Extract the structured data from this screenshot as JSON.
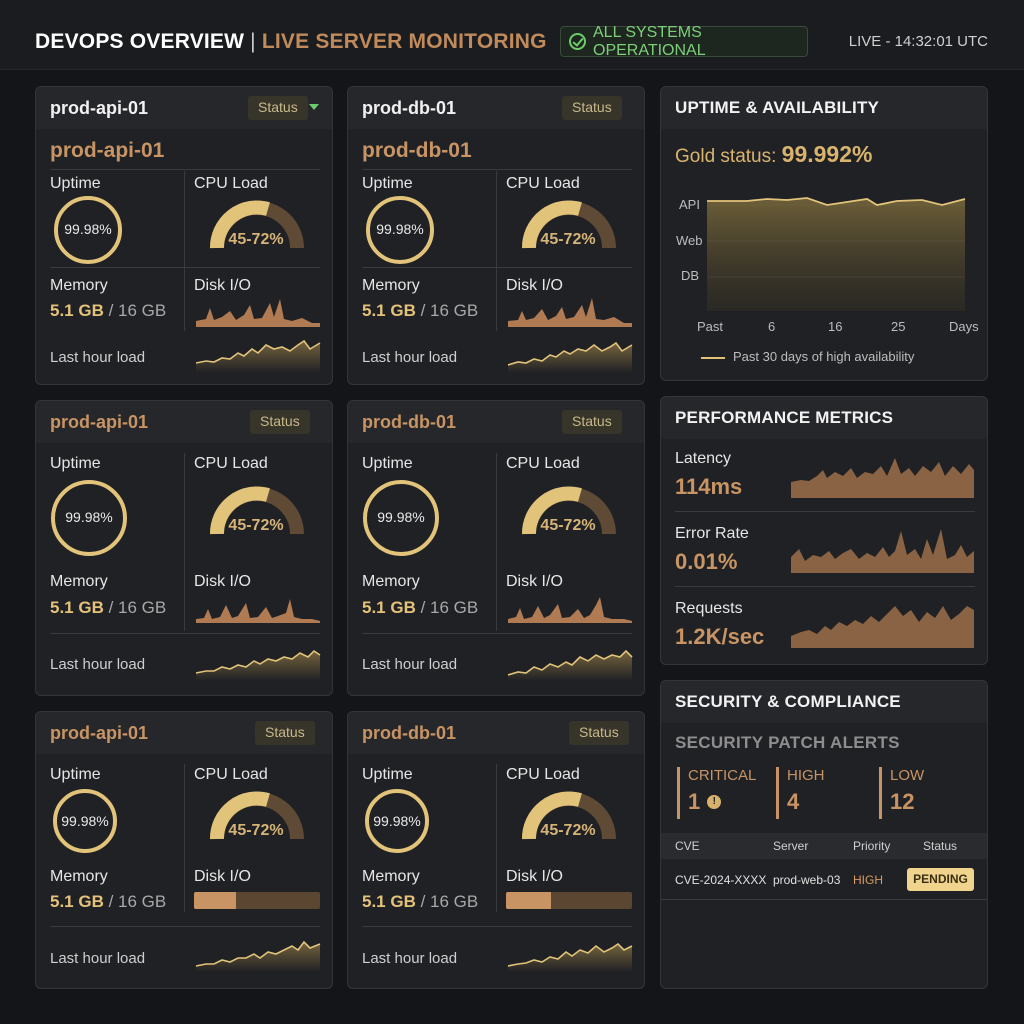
{
  "header": {
    "title": "DEVOPS OVERVIEW",
    "separator": "|",
    "subtitle": "LIVE SERVER MONITORING",
    "status": "ALL SYSTEMS OPERATIONAL",
    "live": "LIVE - 14:32:01 UTC"
  },
  "labels": {
    "status": "Status",
    "uptime": "Uptime",
    "cpu_load": "CPU Load",
    "memory": "Memory",
    "disk_io": "Disk I/O",
    "last_hour_load": "Last hour load"
  },
  "servers": [
    {
      "name": "prod-api-01",
      "subname": "prod-api-01",
      "uptime": "99.98%",
      "uptime_fraction": 0.9998,
      "cpu_load": "45-72%",
      "cpu_fraction": 0.72,
      "memory_used": "5.1 GB",
      "memory_total": "/ 16 GB"
    },
    {
      "name": "prod-db-01",
      "subname": "prod-db-01",
      "uptime": "99.98%",
      "uptime_fraction": 0.9998,
      "cpu_load": "45-72%",
      "cpu_fraction": 0.72,
      "memory_used": "5.1 GB",
      "memory_total": "/ 16 GB"
    },
    {
      "name": "prod-api-01",
      "uptime": "99.98%",
      "uptime_fraction": 0.9998,
      "cpu_load": "45-72%",
      "cpu_fraction": 0.72,
      "memory_used": "5.1 GB",
      "memory_total": "/ 16 GB"
    },
    {
      "name": "prod-db-01",
      "uptime": "99.98%",
      "uptime_fraction": 0.9998,
      "cpu_load": "45-72%",
      "cpu_fraction": 0.72,
      "memory_used": "5.1 GB",
      "memory_total": "/ 16 GB"
    },
    {
      "name": "prod-api-01",
      "uptime": "99.98%",
      "uptime_fraction": 0.9998,
      "cpu_load": "45-72%",
      "cpu_fraction": 0.72,
      "memory_used": "5.1 GB",
      "memory_total": "/ 16 GB",
      "disk_fraction": 0.33
    },
    {
      "name": "prod-db-01",
      "uptime": "99.98%",
      "uptime_fraction": 0.9998,
      "cpu_load": "45-72%",
      "cpu_fraction": 0.72,
      "memory_used": "5.1 GB",
      "memory_total": "/ 16 GB",
      "disk_fraction": 0.36
    }
  ],
  "uptime_panel": {
    "title": "UPTIME & AVAILABILITY",
    "gold_label": "Gold status:",
    "gold_value": "99.992%",
    "y_labels": [
      "API",
      "Web",
      "DB"
    ],
    "x_labels": [
      "Past",
      "6",
      "16",
      "25",
      "Days"
    ],
    "legend": "Past 30 days of high availability"
  },
  "performance": {
    "title": "PERFORMANCE METRICS",
    "metrics": [
      {
        "label": "Latency",
        "value": "114ms"
      },
      {
        "label": "Error Rate",
        "value": "0.01%"
      },
      {
        "label": "Requests",
        "value": "1.2K/sec"
      }
    ]
  },
  "security": {
    "title": "SECURITY & COMPLIANCE",
    "alerts_heading": "SECURITY PATCH ALERTS",
    "severities": [
      {
        "label": "CRITICAL",
        "count": "1"
      },
      {
        "label": "HIGH",
        "count": "4"
      },
      {
        "label": "LOW",
        "count": "12"
      }
    ],
    "table_headers": [
      "CVE",
      "Server",
      "Priority",
      "Status"
    ],
    "rows": [
      {
        "cve": "CVE-2024-XXXX",
        "server": "prod-web-03",
        "priority": "HIGH",
        "status": "PENDING"
      }
    ]
  },
  "colors": {
    "accent": "#c89464",
    "gold": "#e2c37a",
    "ok": "#6ccc6a",
    "panel": "#202125"
  }
}
